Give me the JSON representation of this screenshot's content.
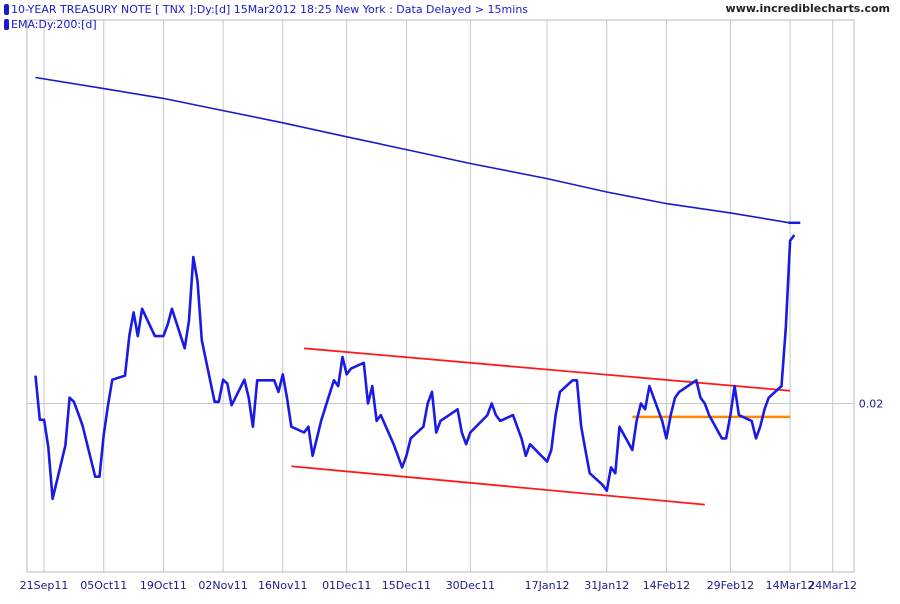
{
  "chart_data": {
    "type": "line",
    "title": "10-YEAR TREASURY NOTE [ TNX ]:Dy:[d]  15Mar2012 18:25 New York : Data Delayed > 15mins",
    "legend": [
      "10-YEAR TREASURY NOTE [ TNX ]:Dy:[d]  15Mar2012 18:25 New York : Data Delayed > 15mins",
      "EMA:Dy:200:[d]"
    ],
    "watermark": "www.incrediblecharts.com",
    "x_ticks": [
      {
        "label": "21Sep11",
        "date": "2011-09-21"
      },
      {
        "label": "05Oct11",
        "date": "2011-10-05"
      },
      {
        "label": "19Oct11",
        "date": "2011-10-19"
      },
      {
        "label": "02Nov11",
        "date": "2011-11-02"
      },
      {
        "label": "16Nov11",
        "date": "2011-11-16"
      },
      {
        "label": "01Dec11",
        "date": "2011-12-01"
      },
      {
        "label": "15Dec11",
        "date": "2011-12-15"
      },
      {
        "label": "30Dec11",
        "date": "2011-12-30"
      },
      {
        "label": "17Jan12",
        "date": "2012-01-17"
      },
      {
        "label": "31Jan12",
        "date": "2012-01-31"
      },
      {
        "label": "14Feb12",
        "date": "2012-02-14"
      },
      {
        "label": "29Feb12",
        "date": "2012-02-29"
      },
      {
        "label": "14Mar12",
        "date": "2012-03-14"
      },
      {
        "label": "24Mar12",
        "date": "2012-03-24"
      }
    ],
    "y_ticks": [
      {
        "label": "0.02",
        "value": 0.02
      }
    ],
    "y_range": [
      0.0171,
      0.0266
    ],
    "grid": true,
    "series": [
      {
        "color": "#1a1ae6",
        "points": [
          [
            "2011-09-19",
            0.02048
          ],
          [
            "2011-09-20",
            0.01972
          ],
          [
            "2011-09-21",
            0.01972
          ],
          [
            "2011-09-22",
            0.01925
          ],
          [
            "2011-09-23",
            0.01836
          ],
          [
            "2011-09-26",
            0.01928
          ],
          [
            "2011-09-27",
            0.0201
          ],
          [
            "2011-09-28",
            0.02003
          ],
          [
            "2011-09-29",
            0.01983
          ],
          [
            "2011-09-30",
            0.01963
          ],
          [
            "2011-10-03",
            0.01874
          ],
          [
            "2011-10-04",
            0.01874
          ],
          [
            "2011-10-05",
            0.01946
          ],
          [
            "2011-10-06",
            0.01997
          ],
          [
            "2011-10-07",
            0.02041
          ],
          [
            "2011-10-10",
            0.02048
          ],
          [
            "2011-10-11",
            0.02116
          ],
          [
            "2011-10-12",
            0.02157
          ],
          [
            "2011-10-13",
            0.02116
          ],
          [
            "2011-10-14",
            0.02163
          ],
          [
            "2011-10-17",
            0.02116
          ],
          [
            "2011-10-18",
            0.02116
          ],
          [
            "2011-10-19",
            0.02116
          ],
          [
            "2011-10-20",
            0.02136
          ],
          [
            "2011-10-21",
            0.02163
          ],
          [
            "2011-10-24",
            0.02095
          ],
          [
            "2011-10-25",
            0.02143
          ],
          [
            "2011-10-26",
            0.02252
          ],
          [
            "2011-10-27",
            0.02211
          ],
          [
            "2011-10-28",
            0.02109
          ],
          [
            "2011-10-31",
            0.02003
          ],
          [
            "2011-11-01",
            0.02003
          ],
          [
            "2011-11-02",
            0.02041
          ],
          [
            "2011-11-03",
            0.02034
          ],
          [
            "2011-11-04",
            0.01997
          ],
          [
            "2011-11-07",
            0.02041
          ],
          [
            "2011-11-08",
            0.0201
          ],
          [
            "2011-11-09",
            0.0196
          ],
          [
            "2011-11-10",
            0.0204
          ],
          [
            "2011-11-11",
            0.0204
          ],
          [
            "2011-11-14",
            0.0204
          ],
          [
            "2011-11-15",
            0.0202
          ],
          [
            "2011-11-16",
            0.0205
          ],
          [
            "2011-11-17",
            0.0201
          ],
          [
            "2011-11-18",
            0.0196
          ],
          [
            "2011-11-21",
            0.0195
          ],
          [
            "2011-11-22",
            0.0196
          ],
          [
            "2011-11-23",
            0.0191
          ],
          [
            "2011-11-25",
            0.0197
          ],
          [
            "2011-11-28",
            0.0204
          ],
          [
            "2011-11-29",
            0.0203
          ],
          [
            "2011-11-30",
            0.0208
          ],
          [
            "2011-12-01",
            0.0205
          ],
          [
            "2011-12-02",
            0.0206
          ],
          [
            "2011-12-05",
            0.0207
          ],
          [
            "2011-12-06",
            0.02
          ],
          [
            "2011-12-07",
            0.0203
          ],
          [
            "2011-12-08",
            0.0197
          ],
          [
            "2011-12-09",
            0.0198
          ],
          [
            "2011-12-12",
            0.0193
          ],
          [
            "2011-12-13",
            0.0191
          ],
          [
            "2011-12-14",
            0.0189
          ],
          [
            "2011-12-15",
            0.0191
          ],
          [
            "2011-12-16",
            0.0194
          ],
          [
            "2011-12-19",
            0.0196
          ],
          [
            "2011-12-20",
            0.02
          ],
          [
            "2011-12-21",
            0.0202
          ],
          [
            "2011-12-22",
            0.0195
          ],
          [
            "2011-12-23",
            0.0197
          ],
          [
            "2011-12-27",
            0.0199
          ],
          [
            "2011-12-28",
            0.0195
          ],
          [
            "2011-12-29",
            0.0193
          ],
          [
            "2011-12-30",
            0.0195
          ],
          [
            "2012-01-03",
            0.0198
          ],
          [
            "2012-01-04",
            0.02
          ],
          [
            "2012-01-05",
            0.0198
          ],
          [
            "2012-01-06",
            0.0197
          ],
          [
            "2012-01-09",
            0.0198
          ],
          [
            "2012-01-10",
            0.0196
          ],
          [
            "2012-01-11",
            0.0194
          ],
          [
            "2012-01-12",
            0.0191
          ],
          [
            "2012-01-13",
            0.0193
          ],
          [
            "2012-01-17",
            0.019
          ],
          [
            "2012-01-18",
            0.0192
          ],
          [
            "2012-01-19",
            0.0198
          ],
          [
            "2012-01-20",
            0.0202
          ],
          [
            "2012-01-23",
            0.0204
          ],
          [
            "2012-01-24",
            0.0204
          ],
          [
            "2012-01-25",
            0.0196
          ],
          [
            "2012-01-26",
            0.0192
          ],
          [
            "2012-01-27",
            0.0188
          ],
          [
            "2012-01-30",
            0.0186
          ],
          [
            "2012-01-31",
            0.0185
          ],
          [
            "2012-02-01",
            0.0189
          ],
          [
            "2012-02-02",
            0.0188
          ],
          [
            "2012-02-03",
            0.0196
          ],
          [
            "2012-02-06",
            0.0192
          ],
          [
            "2012-02-07",
            0.0197
          ],
          [
            "2012-02-08",
            0.02
          ],
          [
            "2012-02-09",
            0.0199
          ],
          [
            "2012-02-10",
            0.0203
          ],
          [
            "2012-02-13",
            0.0197
          ],
          [
            "2012-02-14",
            0.0194
          ],
          [
            "2012-02-15",
            0.0198
          ],
          [
            "2012-02-16",
            0.0201
          ],
          [
            "2012-02-17",
            0.0202
          ],
          [
            "2012-02-21",
            0.0204
          ],
          [
            "2012-02-22",
            0.0201
          ],
          [
            "2012-02-23",
            0.02
          ],
          [
            "2012-02-24",
            0.0198
          ],
          [
            "2012-02-27",
            0.0194
          ],
          [
            "2012-02-28",
            0.0194
          ],
          [
            "2012-02-29",
            0.0198
          ],
          [
            "2012-03-01",
            0.0203
          ],
          [
            "2012-03-02",
            0.0198
          ],
          [
            "2012-03-05",
            0.0197
          ],
          [
            "2012-03-06",
            0.0194
          ],
          [
            "2012-03-07",
            0.0196
          ],
          [
            "2012-03-08",
            0.0199
          ],
          [
            "2012-03-09",
            0.0201
          ],
          [
            "2012-03-12",
            0.0203
          ],
          [
            "2012-03-13",
            0.0213
          ],
          [
            "2012-03-14",
            0.0228
          ],
          [
            "2012-03-15",
            0.0229
          ]
        ]
      },
      {
        "color": "#1a1acc",
        "points": [
          [
            "2011-09-19",
            0.02561
          ],
          [
            "2011-10-05",
            0.02542
          ],
          [
            "2011-10-19",
            0.02525
          ],
          [
            "2011-11-02",
            0.02504
          ],
          [
            "2011-11-16",
            0.02483
          ],
          [
            "2011-12-01",
            0.02459
          ],
          [
            "2011-12-15",
            0.02437
          ],
          [
            "2011-12-30",
            0.02413
          ],
          [
            "2012-01-17",
            0.02387
          ],
          [
            "2012-01-31",
            0.02364
          ],
          [
            "2012-02-14",
            0.02344
          ],
          [
            "2012-02-29",
            0.02328
          ],
          [
            "2012-03-13",
            0.02312
          ],
          [
            "2012-03-14",
            0.02311
          ],
          [
            "2012-03-15",
            0.02311
          ]
        ]
      }
    ],
    "trendlines": [
      {
        "color": "#ff1a1a",
        "from": [
          "2011-11-21",
          0.02095
        ],
        "to": [
          "2012-03-14",
          0.02022
        ]
      },
      {
        "color": "#ff1a1a",
        "from": [
          "2011-11-18",
          0.01892
        ],
        "to": [
          "2012-02-23",
          0.01826
        ]
      },
      {
        "color": "#ff8800",
        "from": [
          "2012-02-06",
          0.01977
        ],
        "to": [
          "2012-03-14",
          0.01977
        ]
      }
    ]
  }
}
